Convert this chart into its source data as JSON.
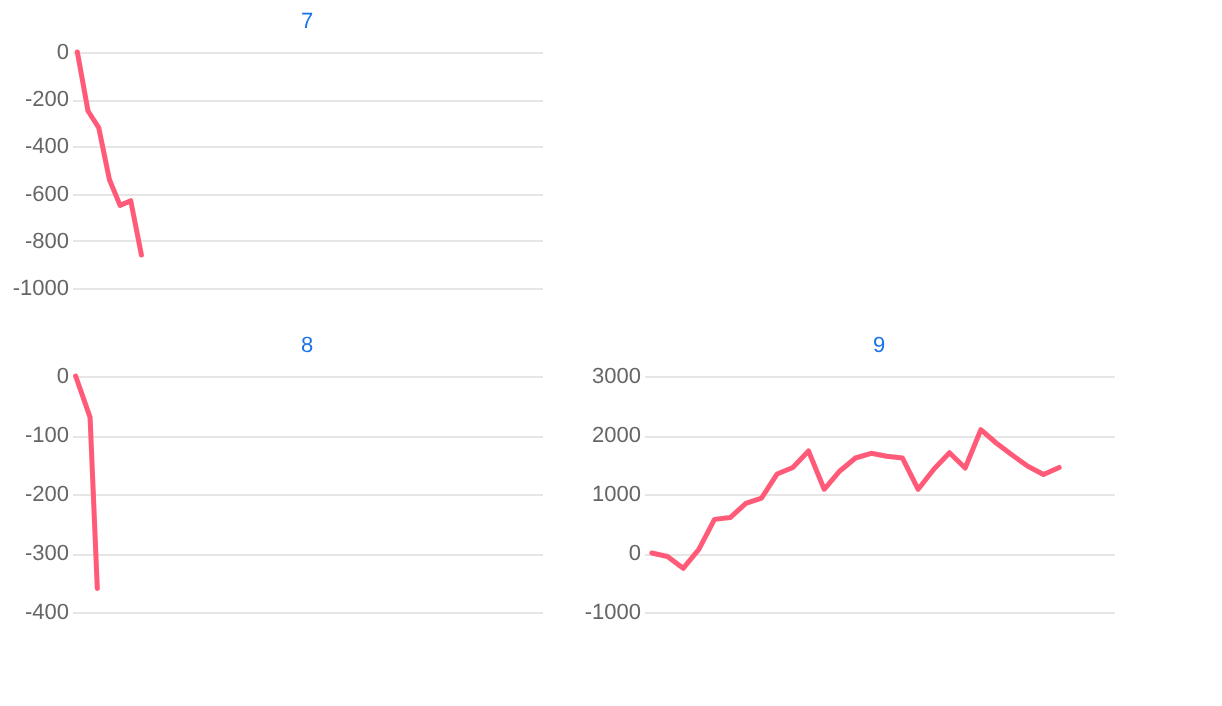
{
  "chart_data": [
    {
      "type": "line",
      "title": "7",
      "categories": [
        null,
        null,
        null,
        null,
        null,
        null,
        null,
        null,
        null,
        null,
        null,
        null,
        null,
        null,
        null,
        null,
        null,
        null,
        null,
        null,
        null,
        null,
        null,
        null,
        null,
        null,
        null,
        null,
        null,
        null,
        null,
        null,
        null,
        null,
        null,
        null,
        null,
        null,
        null,
        null,
        null,
        null,
        null,
        null
      ],
      "series": [
        {
          "color": "#ff5a78",
          "values": [
            0,
            -250,
            -320,
            -540,
            -650,
            -630,
            -860,
            null,
            null,
            null,
            null,
            null,
            null,
            null,
            null,
            null,
            null,
            null,
            null,
            null,
            null,
            null,
            null,
            null,
            null,
            null,
            null,
            null,
            null,
            null,
            null,
            null,
            null,
            null,
            null,
            null,
            null,
            null,
            null,
            null,
            null,
            null,
            null,
            null
          ]
        }
      ],
      "ylim": [
        -1000,
        0
      ],
      "yticks": [
        -1000,
        -800,
        -600,
        -400,
        -200,
        0
      ],
      "grid": "y",
      "tick_labels": "y",
      "marker": "none",
      "line_style": "solid",
      "legend": false
    },
    {
      "type": "line",
      "title": "8",
      "categories": [
        null,
        null,
        null,
        null,
        null,
        null,
        null,
        null,
        null,
        null,
        null,
        null,
        null,
        null,
        null,
        null,
        null,
        null,
        null,
        null,
        null,
        null,
        null,
        null,
        null,
        null,
        null,
        null,
        null,
        null,
        null,
        null,
        null,
        null,
        null,
        null,
        null,
        null,
        null,
        null,
        null,
        null,
        null,
        null,
        null,
        null,
        null,
        null,
        null,
        null,
        null,
        null,
        null,
        null,
        null,
        null,
        null,
        null,
        null,
        null,
        null,
        null,
        null,
        null,
        null
      ],
      "series": [
        {
          "color": "#ff5a78",
          "values": [
            0,
            -35,
            -70,
            -360,
            null,
            null,
            null,
            null,
            null,
            null,
            null,
            null,
            null,
            null,
            null,
            null,
            null,
            null,
            null,
            null,
            null,
            null,
            null,
            null,
            null,
            null,
            null,
            null,
            null,
            null,
            null,
            null,
            null,
            null,
            null,
            null,
            null,
            null,
            null,
            null,
            null,
            null,
            null,
            null,
            null,
            null,
            null,
            null,
            null,
            null,
            null,
            null,
            null,
            null,
            null,
            null,
            null,
            null,
            null,
            null,
            null,
            null,
            null,
            null,
            null
          ]
        }
      ],
      "ylim": [
        -400,
        0
      ],
      "yticks": [
        -400,
        -300,
        -200,
        -100,
        0
      ],
      "grid": "y",
      "tick_labels": "y",
      "marker": "none",
      "line_style": "solid",
      "legend": false
    },
    {
      "type": "line",
      "title": "9",
      "categories": [
        null,
        null,
        null,
        null,
        null,
        null,
        null,
        null,
        null,
        null,
        null,
        null,
        null,
        null,
        null,
        null,
        null,
        null,
        null,
        null,
        null,
        null,
        null,
        null,
        null,
        null,
        null,
        null,
        null,
        null
      ],
      "series": [
        {
          "color": "#ff5a78",
          "values": [
            0,
            -60,
            -260,
            60,
            570,
            600,
            840,
            930,
            1340,
            1450,
            1730,
            1080,
            1390,
            1610,
            1690,
            1640,
            1610,
            1080,
            1420,
            1700,
            1440,
            2090,
            1860,
            1660,
            1470,
            1330,
            1450,
            null,
            null,
            null
          ]
        }
      ],
      "ylim": [
        -1000,
        3000
      ],
      "yticks": [
        -1000,
        0,
        1000,
        2000,
        3000
      ],
      "grid": "y",
      "tick_labels": "y",
      "marker": "none",
      "line_style": "solid",
      "legend": false
    }
  ]
}
